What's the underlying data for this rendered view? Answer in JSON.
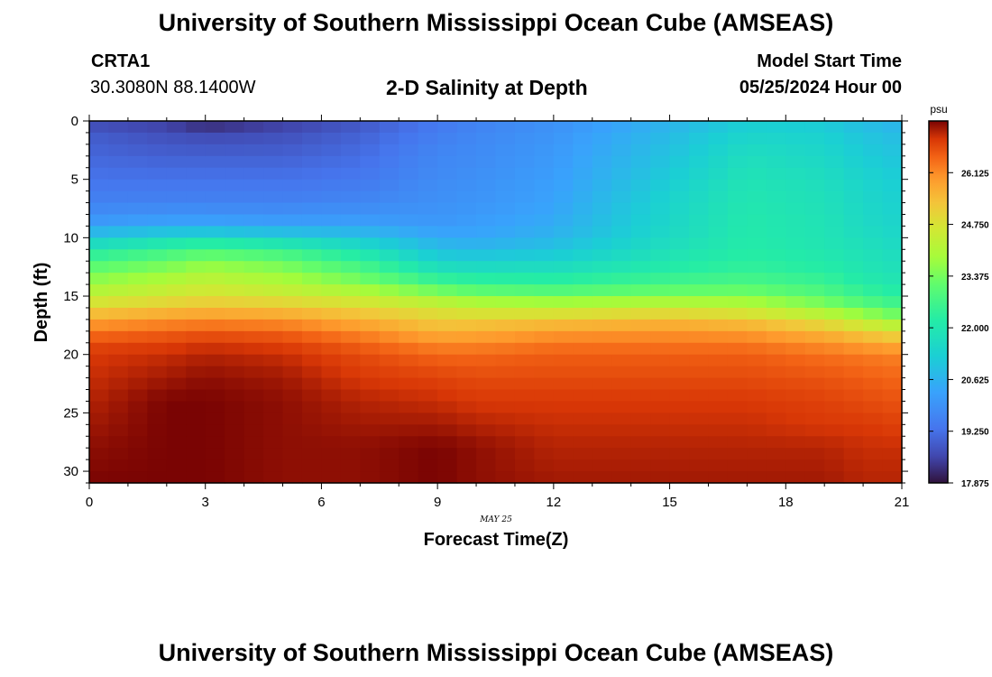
{
  "header": {
    "title": "University of Southern Mississippi Ocean Cube (AMSEAS)",
    "station_id": "CRTA1",
    "station_coords": "30.3080N  88.1400W",
    "plot_title": "2-D Salinity at Depth",
    "model_start_label": "Model Start Time",
    "model_start_value": "05/25/2024 Hour 00"
  },
  "footer": {
    "title": "University of Southern Mississippi Ocean Cube (AMSEAS)"
  },
  "chart_data": {
    "type": "heatmap",
    "title": "2-D Salinity at Depth",
    "xlabel": "Forecast Time(Z)",
    "ylabel": "Depth (ft)",
    "x_ticks": [
      0,
      3,
      6,
      9,
      12,
      15,
      18,
      21
    ],
    "xlim": [
      0,
      21
    ],
    "x_date_label": "MAY 25",
    "y_ticks": [
      0,
      5,
      10,
      15,
      20,
      25,
      30
    ],
    "ylim": [
      0,
      31
    ],
    "y_inverted": true,
    "colorbar": {
      "unit": "psu",
      "range": [
        17.875,
        27.5
      ],
      "tick_labels": [
        "17.875",
        "19.250",
        "20.625",
        "22.000",
        "23.375",
        "24.750",
        "26.125"
      ],
      "tick_values": [
        17.875,
        19.25,
        20.625,
        22.0,
        23.375,
        24.75,
        26.125
      ]
    },
    "grid": {
      "time_step_hours": 0.5,
      "depth_step_ft": 1
    },
    "profile_depths_ft": [
      0,
      1,
      3,
      5,
      7,
      9,
      10,
      11,
      12,
      13,
      14,
      15,
      16,
      17,
      18,
      19,
      20,
      22,
      24,
      26,
      28,
      31
    ],
    "profiles": [
      {
        "time": 0,
        "salinity": [
          18.6,
          18.9,
          19.1,
          19.3,
          19.6,
          20.2,
          21.2,
          22.0,
          22.8,
          23.3,
          23.8,
          24.3,
          25.0,
          25.8,
          26.3,
          26.8,
          27.0,
          27.1,
          27.2,
          27.3,
          27.4,
          27.5
        ]
      },
      {
        "time": 2,
        "salinity": [
          18.4,
          18.7,
          19.0,
          19.3,
          19.6,
          20.4,
          21.6,
          22.5,
          23.2,
          23.7,
          24.2,
          24.6,
          25.3,
          26.0,
          26.5,
          26.9,
          27.1,
          27.3,
          27.5,
          27.5,
          27.5,
          27.5
        ]
      },
      {
        "time": 3,
        "salinity": [
          18.0,
          18.6,
          19.0,
          19.3,
          19.6,
          20.4,
          21.7,
          22.8,
          23.5,
          24.0,
          24.4,
          24.8,
          25.4,
          26.1,
          26.6,
          27.0,
          27.2,
          27.4,
          27.5,
          27.5,
          27.5,
          27.5
        ]
      },
      {
        "time": 5,
        "salinity": [
          18.4,
          18.7,
          19.0,
          19.3,
          19.6,
          20.3,
          21.4,
          22.5,
          23.2,
          23.7,
          24.1,
          24.6,
          25.3,
          26.0,
          26.5,
          26.9,
          27.1,
          27.3,
          27.4,
          27.4,
          27.4,
          27.4
        ]
      },
      {
        "time": 7,
        "salinity": [
          18.8,
          19.0,
          19.2,
          19.4,
          19.7,
          20.3,
          21.1,
          21.8,
          22.5,
          23.0,
          23.6,
          24.3,
          25.0,
          25.6,
          26.1,
          26.5,
          26.8,
          27.0,
          27.2,
          27.3,
          27.4,
          27.4
        ]
      },
      {
        "time": 9,
        "salinity": [
          19.4,
          19.5,
          19.7,
          19.8,
          19.9,
          20.1,
          20.5,
          20.9,
          21.4,
          22.0,
          22.8,
          23.8,
          24.6,
          25.1,
          25.6,
          26.1,
          26.5,
          26.9,
          27.1,
          27.3,
          27.5,
          27.5
        ]
      },
      {
        "time": 10,
        "salinity": [
          19.6,
          19.7,
          19.8,
          19.9,
          20.0,
          20.2,
          20.4,
          20.8,
          21.3,
          21.9,
          22.6,
          23.5,
          24.4,
          25.1,
          25.7,
          26.1,
          26.5,
          26.8,
          27.0,
          27.2,
          27.4,
          27.4
        ]
      },
      {
        "time": 12,
        "salinity": [
          19.9,
          20.0,
          20.1,
          20.2,
          20.3,
          20.5,
          20.7,
          21.0,
          21.4,
          21.9,
          22.5,
          23.3,
          24.3,
          25.2,
          25.9,
          26.3,
          26.6,
          26.8,
          27.0,
          27.1,
          27.2,
          27.3
        ]
      },
      {
        "time": 15,
        "salinity": [
          20.6,
          20.8,
          21.0,
          21.2,
          21.4,
          21.5,
          21.6,
          21.8,
          22.0,
          22.3,
          22.8,
          23.5,
          24.5,
          25.4,
          26.0,
          26.3,
          26.6,
          26.8,
          27.0,
          27.1,
          27.2,
          27.3
        ]
      },
      {
        "time": 17,
        "salinity": [
          21.2,
          21.4,
          21.7,
          21.9,
          22.0,
          22.1,
          22.1,
          22.2,
          22.3,
          22.5,
          22.9,
          23.5,
          24.3,
          25.2,
          25.9,
          26.3,
          26.6,
          26.8,
          27.0,
          27.1,
          27.2,
          27.3
        ]
      },
      {
        "time": 19,
        "salinity": [
          21.1,
          21.3,
          21.5,
          21.7,
          21.8,
          21.9,
          21.9,
          22.0,
          22.1,
          22.3,
          22.6,
          23.0,
          23.7,
          24.6,
          25.5,
          26.0,
          26.4,
          26.7,
          26.9,
          27.0,
          27.2,
          27.3
        ]
      },
      {
        "time": 20,
        "salinity": [
          20.8,
          21.0,
          21.2,
          21.4,
          21.5,
          21.6,
          21.7,
          21.8,
          21.9,
          22.0,
          22.2,
          22.6,
          23.2,
          24.1,
          25.1,
          25.8,
          26.3,
          26.6,
          26.8,
          27.0,
          27.1,
          27.2
        ]
      },
      {
        "time": 21,
        "salinity": [
          20.6,
          20.8,
          21.0,
          21.2,
          21.3,
          21.4,
          21.5,
          21.6,
          21.7,
          21.8,
          22.0,
          22.3,
          22.8,
          23.6,
          24.7,
          25.6,
          26.2,
          26.5,
          26.7,
          26.9,
          27.1,
          27.2
        ]
      }
    ]
  }
}
